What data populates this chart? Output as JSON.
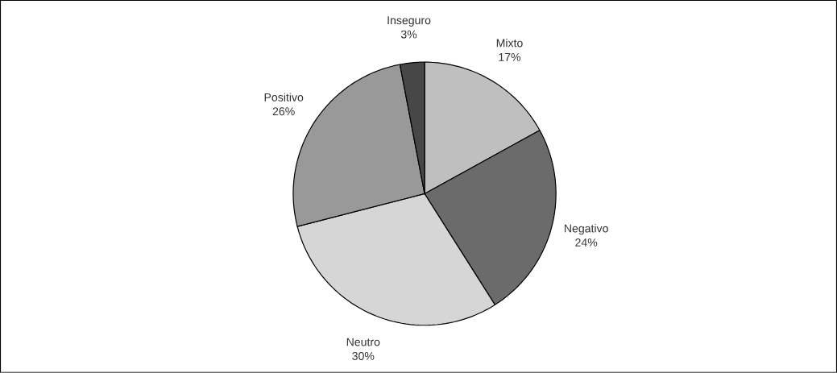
{
  "chart_data": {
    "type": "pie",
    "categories": [
      "Mixto",
      "Negativo",
      "Neutro",
      "Positivo",
      "Inseguro"
    ],
    "values": [
      17,
      24,
      30,
      26,
      3
    ],
    "value_labels": [
      "17%",
      "24%",
      "30%",
      "26%",
      "3%"
    ],
    "colors": [
      "#bfbfbf",
      "#6b6b6b",
      "#d6d6d6",
      "#999999",
      "#474747"
    ]
  }
}
